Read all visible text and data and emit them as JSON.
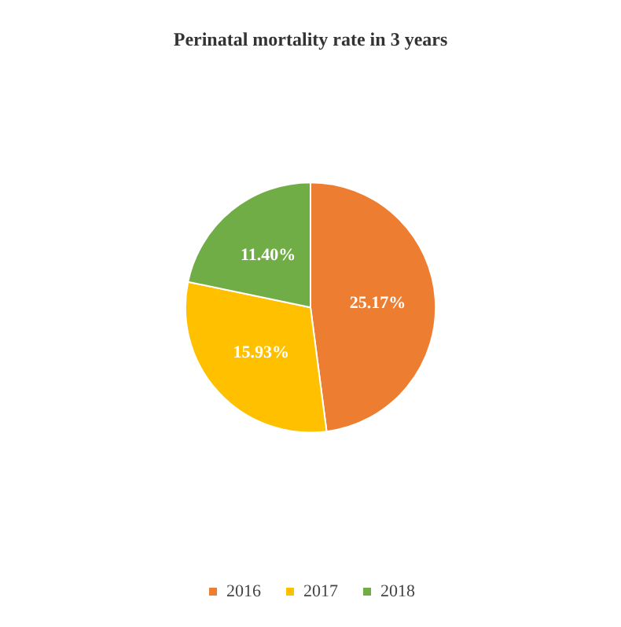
{
  "chart_data": {
    "type": "pie",
    "title": "Perinatal mortality rate in 3 years",
    "categories": [
      "2016",
      "2017",
      "2018"
    ],
    "values": [
      25.17,
      15.93,
      11.4
    ],
    "value_labels": [
      "25.17%",
      "15.93%",
      "11.40%"
    ],
    "colors": [
      "#ed7d31",
      "#ffc000",
      "#70ad47"
    ],
    "legend": "bottom"
  }
}
